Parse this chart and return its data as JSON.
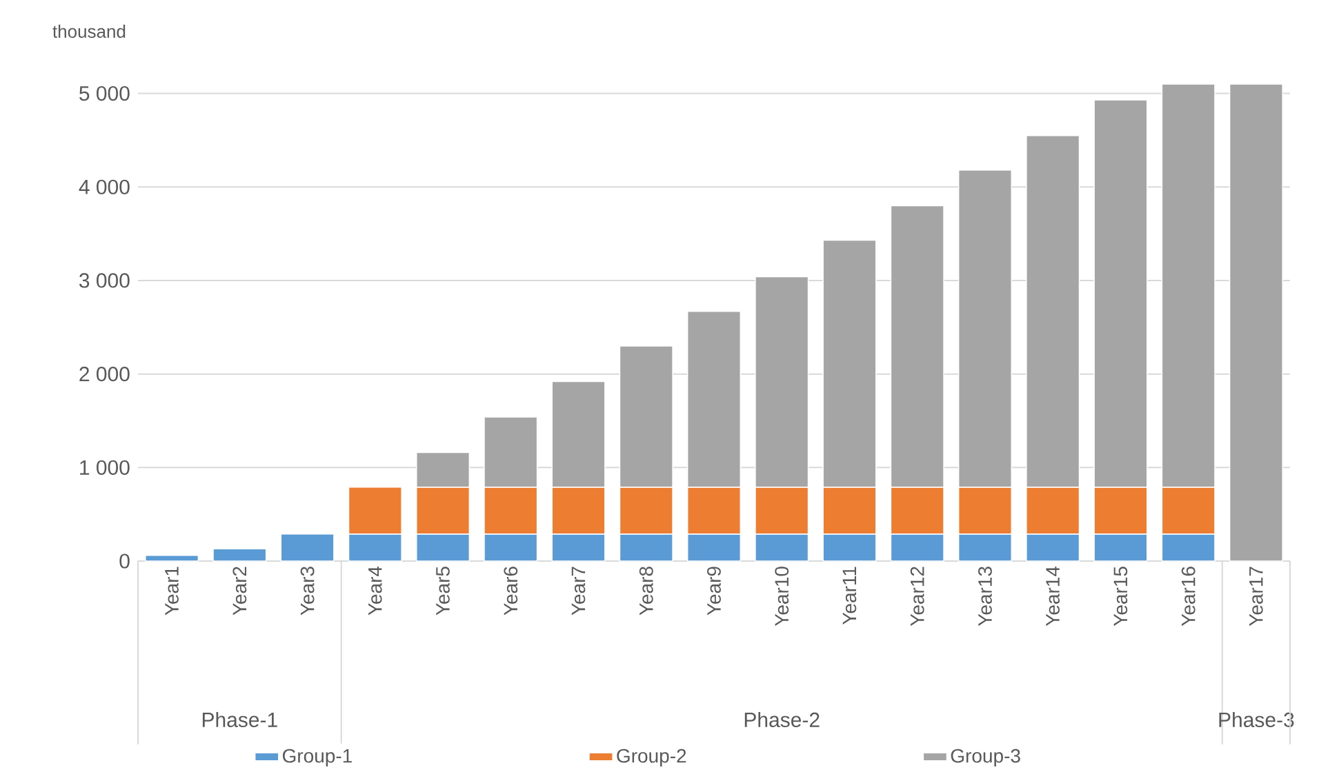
{
  "chart_data": {
    "type": "bar",
    "stacked": true,
    "ylabel": "thousand",
    "categories": [
      "Year1",
      "Year2",
      "Year3",
      "Year4",
      "Year5",
      "Year6",
      "Year7",
      "Year8",
      "Year9",
      "Year10",
      "Year11",
      "Year12",
      "Year13",
      "Year14",
      "Year15",
      "Year16",
      "Year17"
    ],
    "series": [
      {
        "name": "Group-1",
        "color": "#5b9bd5",
        "values": [
          60,
          130,
          290,
          290,
          290,
          290,
          290,
          290,
          290,
          290,
          290,
          290,
          290,
          290,
          290,
          290,
          null
        ]
      },
      {
        "name": "Group-2",
        "color": "#ed7d31",
        "values": [
          null,
          null,
          null,
          500,
          500,
          500,
          500,
          500,
          500,
          500,
          500,
          500,
          500,
          500,
          500,
          500,
          null
        ]
      },
      {
        "name": "Group-3",
        "color": "#a5a5a5",
        "values": [
          null,
          null,
          null,
          null,
          370,
          750,
          1130,
          1510,
          1880,
          2250,
          2640,
          3010,
          3390,
          3760,
          4140,
          4310,
          5100
        ]
      }
    ],
    "ylim": [
      0,
      5100
    ],
    "yticks": [
      0,
      {
        "value": 1000,
        "label": "1 000"
      },
      {
        "value": 2000,
        "label": "2 000"
      },
      {
        "value": 3000,
        "label": "3 000"
      },
      {
        "value": 4000,
        "label": "4 000"
      },
      {
        "value": 5000,
        "label": "5 000"
      }
    ],
    "grid": "y",
    "legend": "bottom",
    "annotations": [
      "Phase-1",
      "Phase-2",
      "Phase-3"
    ]
  }
}
